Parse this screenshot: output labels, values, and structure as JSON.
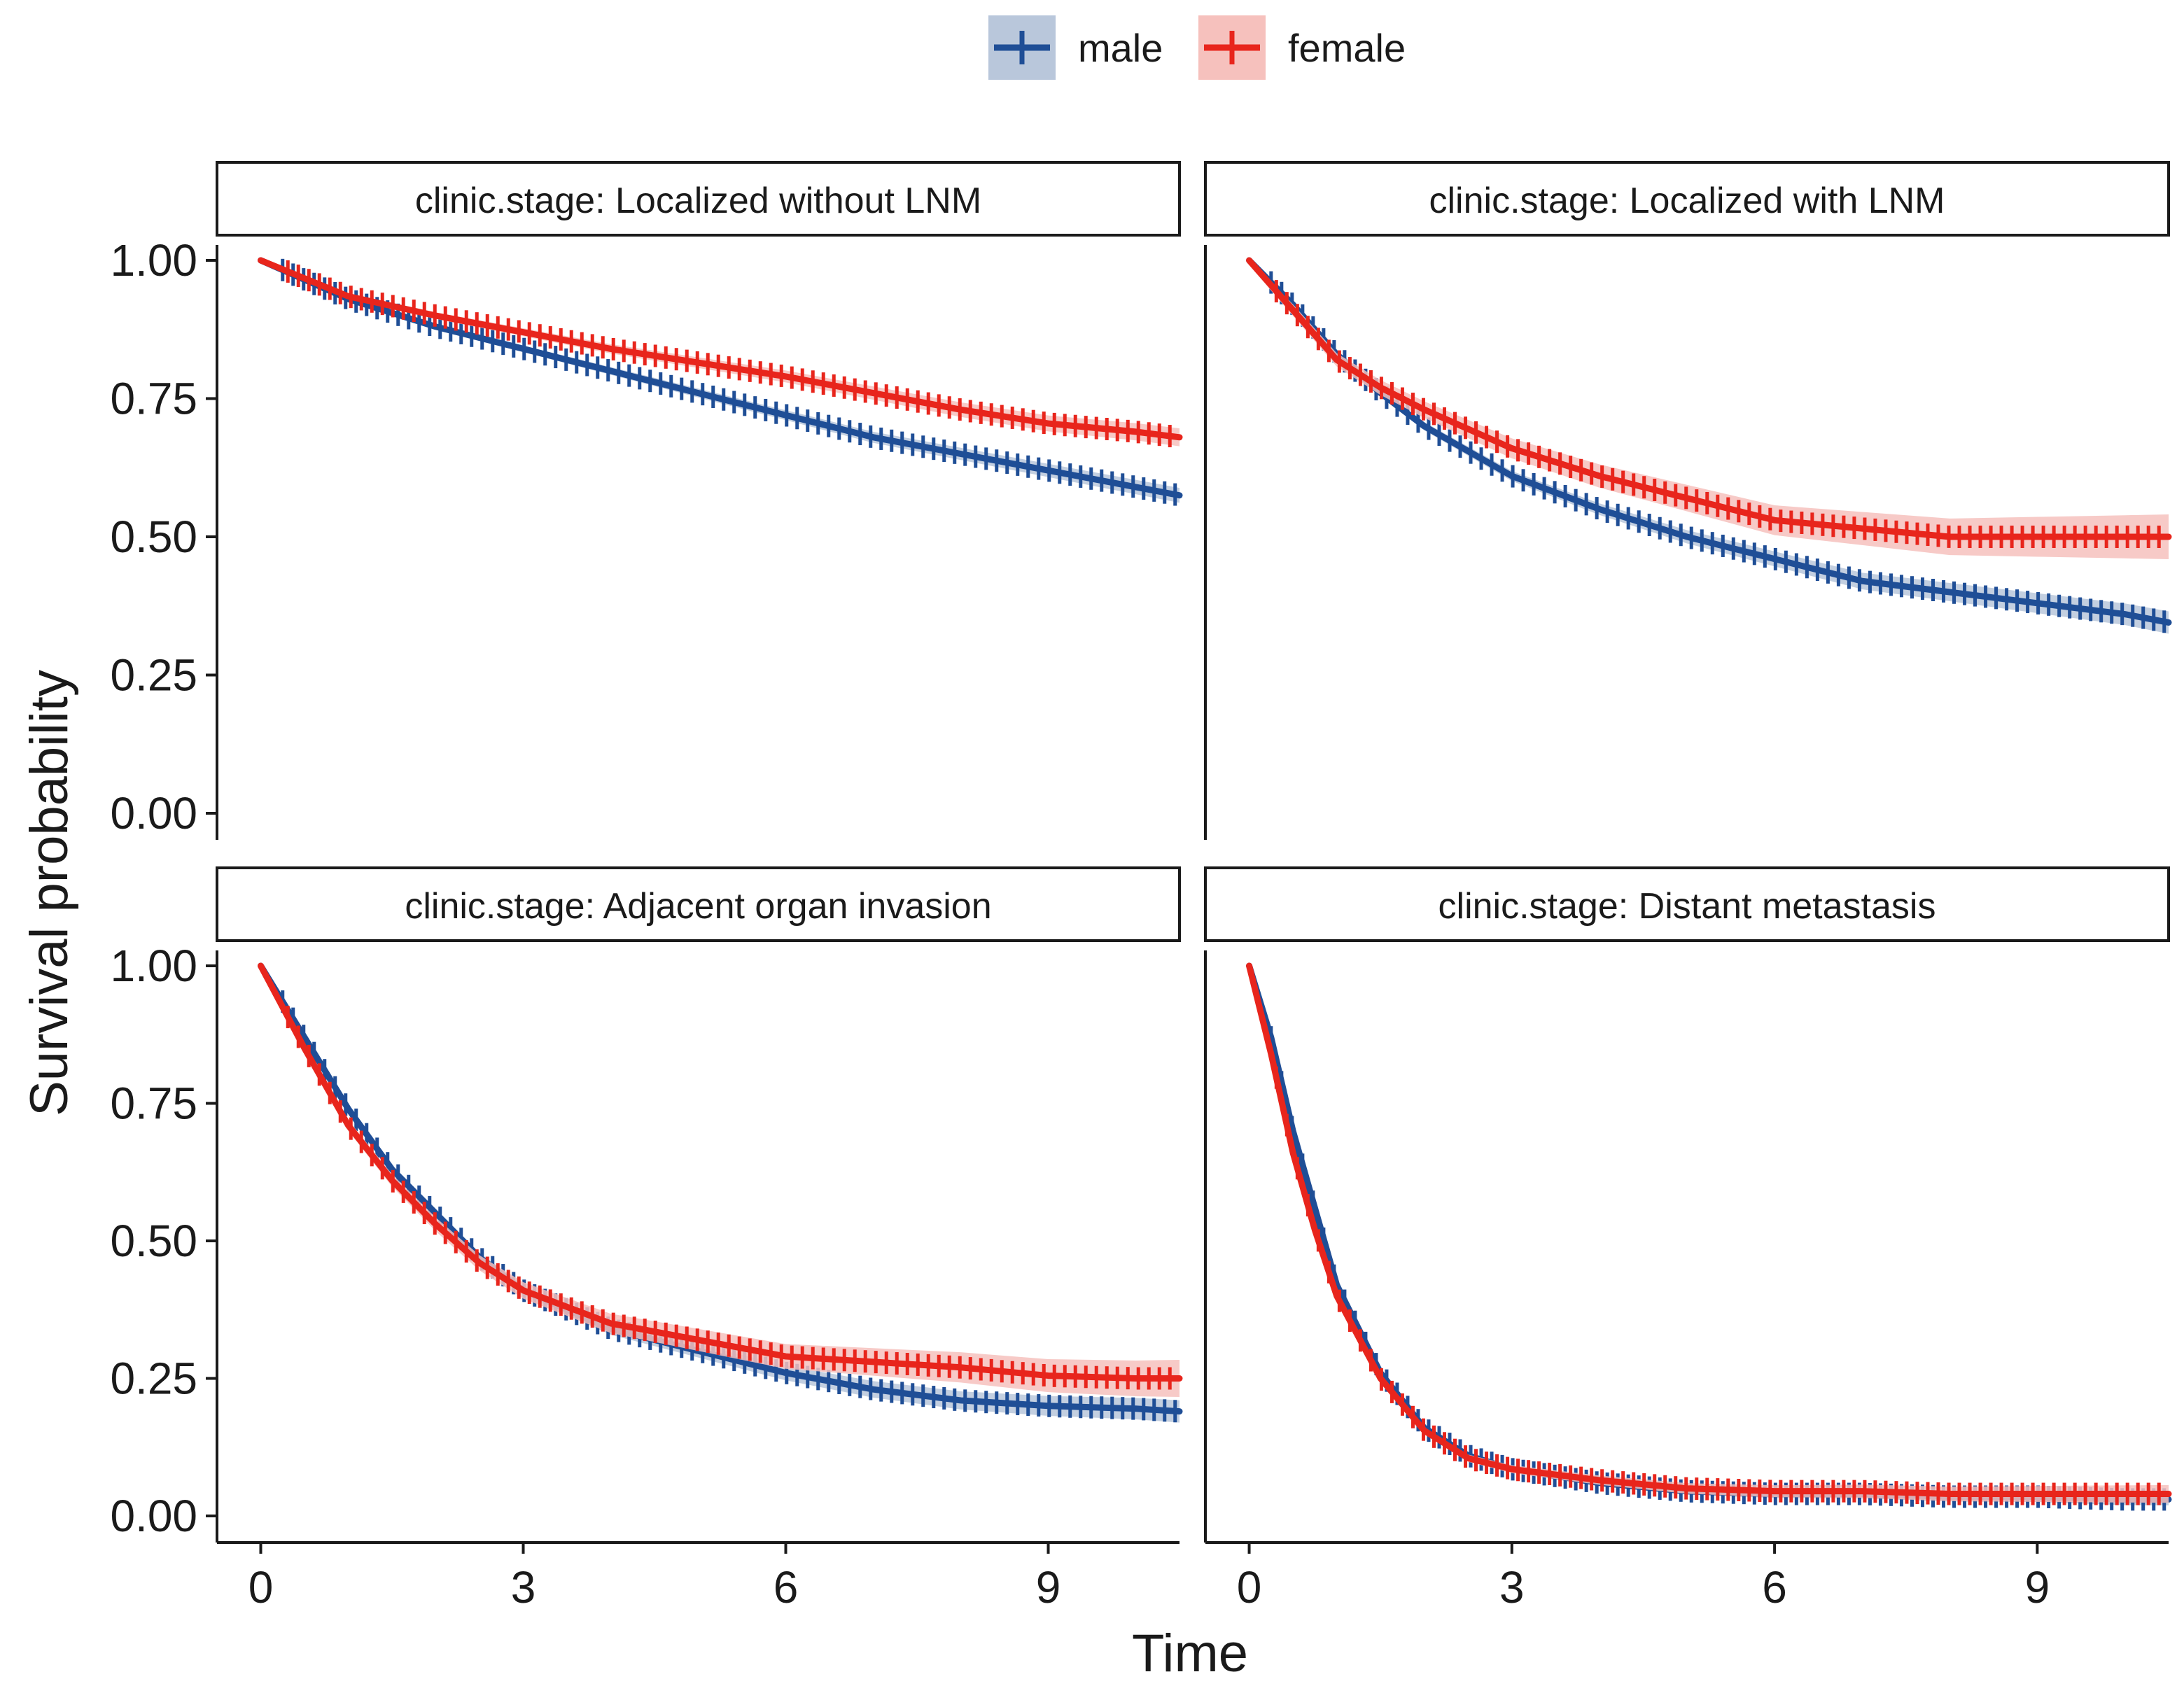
{
  "chart_data": {
    "type": "line",
    "subtype": "kaplan-meier survival curves with censor marks and confidence bands",
    "xlabel": "Time",
    "ylabel": "Survival probability",
    "xlim": [
      -0.5,
      10.5
    ],
    "ylim": [
      0,
      1.0
    ],
    "x_ticks": [
      "0",
      "3",
      "6",
      "9"
    ],
    "y_ticks": [
      "0.00",
      "0.25",
      "0.50",
      "0.75",
      "1.00"
    ],
    "legend": {
      "placement": "top",
      "entries": [
        {
          "name": "male",
          "color": "#1f4e96",
          "band": "#b9c7db"
        },
        {
          "name": "female",
          "color": "#e8251c",
          "band": "#f6c1bd"
        }
      ]
    },
    "panels": [
      {
        "strip": "clinic.stage: Localized without LNM",
        "series": [
          {
            "name": "male",
            "x": [
              0,
              1,
              2,
              3,
              4,
              5,
              6,
              7,
              8,
              9,
              10,
              10.5
            ],
            "values": [
              1.0,
              0.93,
              0.88,
              0.84,
              0.8,
              0.76,
              0.72,
              0.68,
              0.65,
              0.62,
              0.59,
              0.575
            ],
            "band": 0.01
          },
          {
            "name": "female",
            "x": [
              0,
              1,
              2,
              3,
              4,
              5,
              6,
              7,
              8,
              9,
              10,
              10.5
            ],
            "values": [
              1.0,
              0.935,
              0.9,
              0.87,
              0.84,
              0.815,
              0.79,
              0.76,
              0.73,
              0.705,
              0.69,
              0.68
            ],
            "band": 0.012
          }
        ]
      },
      {
        "strip": "clinic.stage: Localized with LNM",
        "series": [
          {
            "name": "male",
            "x": [
              0,
              0.5,
              1,
              1.5,
              2,
              3,
              4,
              5,
              6,
              7,
              8,
              9,
              10,
              10.5
            ],
            "values": [
              1.0,
              0.92,
              0.83,
              0.76,
              0.7,
              0.61,
              0.55,
              0.5,
              0.46,
              0.42,
              0.4,
              0.38,
              0.36,
              0.345
            ],
            "band": 0.015
          },
          {
            "name": "female",
            "x": [
              0,
              0.5,
              1,
              1.5,
              2,
              3,
              4,
              5,
              6,
              7,
              8,
              9,
              10,
              10.5
            ],
            "values": [
              1.0,
              0.91,
              0.82,
              0.77,
              0.73,
              0.66,
              0.61,
              0.57,
              0.53,
              0.515,
              0.5,
              0.5,
              0.5,
              0.5
            ],
            "band": 0.03
          }
        ]
      },
      {
        "strip": "clinic.stage: Adjacent organ invasion",
        "series": [
          {
            "name": "male",
            "x": [
              0,
              0.5,
              1,
              1.5,
              2,
              2.5,
              3,
              4,
              5,
              6,
              7,
              8,
              9,
              10,
              10.5
            ],
            "values": [
              1.0,
              0.87,
              0.74,
              0.63,
              0.55,
              0.47,
              0.41,
              0.34,
              0.3,
              0.26,
              0.23,
              0.21,
              0.2,
              0.195,
              0.19
            ],
            "band": 0.015
          },
          {
            "name": "female",
            "x": [
              0,
              0.5,
              1,
              1.5,
              2,
              2.5,
              3,
              4,
              5,
              6,
              7,
              8,
              9,
              10,
              10.5
            ],
            "values": [
              1.0,
              0.85,
              0.71,
              0.61,
              0.53,
              0.46,
              0.41,
              0.35,
              0.32,
              0.29,
              0.28,
              0.27,
              0.255,
              0.25,
              0.25
            ],
            "band": 0.025
          }
        ]
      },
      {
        "strip": "clinic.stage: Distant metastasis",
        "series": [
          {
            "name": "male",
            "x": [
              0,
              0.25,
              0.5,
              0.75,
              1,
              1.5,
              2,
              2.5,
              3,
              4,
              5,
              6,
              7,
              8,
              9,
              10,
              10.5
            ],
            "values": [
              1.0,
              0.87,
              0.7,
              0.56,
              0.42,
              0.26,
              0.16,
              0.11,
              0.085,
              0.06,
              0.045,
              0.04,
              0.04,
              0.035,
              0.035,
              0.03,
              0.03
            ],
            "band": 0.008
          },
          {
            "name": "female",
            "x": [
              0,
              0.25,
              0.5,
              0.75,
              1,
              1.5,
              2,
              2.5,
              3,
              4,
              5,
              6,
              7,
              8,
              9,
              10,
              10.5
            ],
            "values": [
              1.0,
              0.84,
              0.66,
              0.52,
              0.4,
              0.25,
              0.155,
              0.105,
              0.085,
              0.065,
              0.05,
              0.045,
              0.045,
              0.04,
              0.04,
              0.04,
              0.04
            ],
            "band": 0.012
          }
        ]
      }
    ]
  }
}
